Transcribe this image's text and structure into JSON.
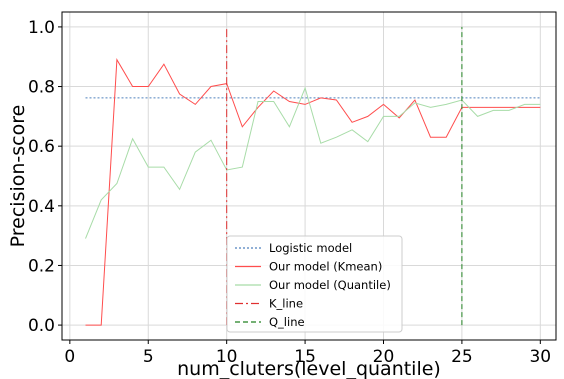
{
  "chart_data": {
    "type": "line",
    "xlabel": "num_cluters(level_quantile)",
    "ylabel": "Precision-score",
    "xlim": [
      -0.5,
      31
    ],
    "ylim": [
      -0.05,
      1.05
    ],
    "xticks": [
      0,
      5,
      10,
      15,
      20,
      25,
      30
    ],
    "yticks": [
      0.0,
      0.2,
      0.4,
      0.6,
      0.8,
      1.0
    ],
    "grid": true,
    "legend_position": "lower-center",
    "series": [
      {
        "name": "Logistic model",
        "color": "#4f81bd",
        "style": "dotted",
        "x": [
          1,
          30
        ],
        "y": [
          0.762,
          0.762
        ]
      },
      {
        "name": "Our model (Kmean)",
        "color": "#ff4d4d",
        "style": "solid",
        "x": [
          1,
          2,
          3,
          4,
          5,
          6,
          7,
          8,
          9,
          10,
          11,
          12,
          13,
          14,
          15,
          16,
          17,
          18,
          19,
          20,
          21,
          22,
          23,
          24,
          25,
          26,
          27,
          28,
          29,
          30
        ],
        "y": [
          0.0,
          0.0,
          0.89,
          0.8,
          0.8,
          0.875,
          0.775,
          0.74,
          0.8,
          0.81,
          0.665,
          0.73,
          0.785,
          0.75,
          0.74,
          0.762,
          0.755,
          0.68,
          0.7,
          0.74,
          0.695,
          0.755,
          0.63,
          0.63,
          0.73,
          0.73,
          0.73,
          0.73,
          0.73,
          0.73
        ]
      },
      {
        "name": "Our model (Quantile)",
        "color": "#a8dca8",
        "style": "solid",
        "x": [
          1,
          2,
          3,
          4,
          5,
          6,
          7,
          8,
          9,
          10,
          11,
          12,
          13,
          14,
          15,
          16,
          17,
          18,
          19,
          20,
          21,
          22,
          23,
          24,
          25,
          26,
          27,
          28,
          29,
          30
        ],
        "y": [
          0.29,
          0.42,
          0.475,
          0.625,
          0.53,
          0.53,
          0.455,
          0.58,
          0.62,
          0.52,
          0.53,
          0.75,
          0.75,
          0.665,
          0.795,
          0.61,
          0.63,
          0.655,
          0.615,
          0.7,
          0.7,
          0.745,
          0.73,
          0.74,
          0.755,
          0.7,
          0.72,
          0.72,
          0.74,
          0.74
        ]
      },
      {
        "name": "K_line",
        "color": "#e03030",
        "style": "dashdot",
        "x": [
          10,
          10
        ],
        "y": [
          0.0,
          1.0
        ]
      },
      {
        "name": "Q_line",
        "color": "#208020",
        "style": "dashed",
        "x": [
          25,
          25
        ],
        "y": [
          0.0,
          1.0
        ]
      }
    ]
  }
}
